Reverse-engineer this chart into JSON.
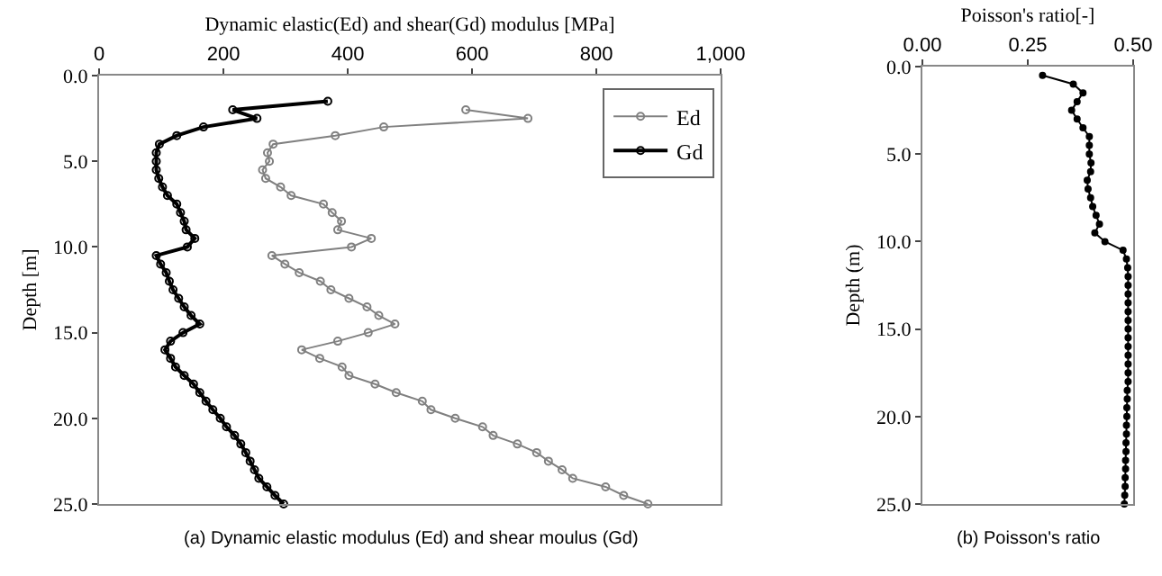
{
  "chart_data": [
    {
      "type": "line",
      "xlabel": "Dynamic elastic(Ed) and shear(Gd) modulus [MPa]",
      "ylabel": "Depth [m]",
      "annotations": [
        "(a) Dynamic elastic modulus (Ed) and shear moulus (Gd)"
      ],
      "xlim": [
        0,
        1000
      ],
      "xticks": [
        0,
        200,
        400,
        600,
        800,
        {
          "value": 1000,
          "label": "1,000"
        }
      ],
      "ylim": [
        25,
        0
      ],
      "yticks": [
        {
          "value": 0,
          "label": "0.0"
        },
        {
          "value": 5,
          "label": "5.0"
        },
        {
          "value": 10,
          "label": "10.0"
        },
        {
          "value": 15,
          "label": "15.0"
        },
        {
          "value": 20,
          "label": "20.0"
        },
        {
          "value": 25,
          "label": "25.0"
        }
      ],
      "grid": false,
      "legend": "top right",
      "marker": "circle",
      "line_style": "solid",
      "series": [
        {
          "name": "Ed",
          "color": "#808080",
          "x": [
            590,
            690,
            458,
            380,
            280,
            271,
            274,
            263,
            268,
            292,
            309,
            361,
            375,
            390,
            384,
            438,
            406,
            278,
            299,
            322,
            356,
            373,
            402,
            431,
            450,
            476,
            433,
            384,
            326,
            355,
            391,
            402,
            444,
            478,
            520,
            534,
            573,
            617,
            634,
            673,
            704,
            723,
            745,
            762,
            815,
            844,
            883
          ],
          "values": [
            2,
            2.5,
            3,
            3.5,
            4,
            4.5,
            5,
            5.5,
            6,
            6.5,
            7,
            7.5,
            8,
            8.5,
            9,
            9.5,
            10,
            10.5,
            11,
            11.5,
            12,
            12.5,
            13,
            13.5,
            14,
            14.5,
            15,
            15.5,
            16,
            16.5,
            17,
            17.5,
            18,
            18.5,
            19,
            19.5,
            20,
            20.5,
            21,
            21.5,
            22,
            22.5,
            23,
            23.5,
            24,
            24.5,
            25
          ]
        },
        {
          "name": "Gd",
          "color": "#000000",
          "x": [
            368,
            215,
            254,
            168,
            125,
            97,
            92,
            92,
            92,
            96,
            102,
            110,
            125,
            131,
            137,
            140,
            154,
            142,
            92,
            99,
            108,
            113,
            119,
            128,
            137,
            148,
            162,
            135,
            115,
            106,
            115,
            123,
            137,
            152,
            162,
            172,
            183,
            195,
            205,
            218,
            228,
            236,
            243,
            250,
            257,
            270,
            283,
            297
          ],
          "values": [
            1.5,
            2,
            2.5,
            3,
            3.5,
            4,
            4.5,
            5,
            5.5,
            6,
            6.5,
            7,
            7.5,
            8,
            8.5,
            9,
            9.5,
            10,
            10.5,
            11,
            11.5,
            12,
            12.5,
            13,
            13.5,
            14,
            14.5,
            15,
            15.5,
            16,
            16.5,
            17,
            17.5,
            18,
            18.5,
            19,
            19.5,
            20,
            20.5,
            21,
            21.5,
            22,
            22.5,
            23,
            23.5,
            24,
            24.5,
            25
          ]
        }
      ]
    },
    {
      "type": "line",
      "xlabel": "Poisson's ratio[-]",
      "ylabel": "Depth (m)",
      "annotations": [
        "(b) Poisson's ratio"
      ],
      "xlim": [
        0,
        0.5
      ],
      "xticks": [
        {
          "value": 0,
          "label": "0.00"
        },
        {
          "value": 0.25,
          "label": "0.25"
        },
        {
          "value": 0.5,
          "label": "0.50"
        }
      ],
      "ylim": [
        25,
        0
      ],
      "yticks": [
        {
          "value": 0,
          "label": "0.0"
        },
        {
          "value": 5,
          "label": "5.0"
        },
        {
          "value": 10,
          "label": "10.0"
        },
        {
          "value": 15,
          "label": "15.0"
        },
        {
          "value": 20,
          "label": "20.0"
        },
        {
          "value": 25,
          "label": "25.0"
        }
      ],
      "grid": false,
      "marker": "circle",
      "line_style": "solid",
      "series": [
        {
          "color": "#000000",
          "x": [
            0.285,
            0.358,
            0.381,
            0.367,
            0.354,
            0.367,
            0.381,
            0.396,
            0.396,
            0.396,
            0.4,
            0.399,
            0.391,
            0.393,
            0.399,
            0.404,
            0.412,
            0.42,
            0.409,
            0.433,
            0.476,
            0.484,
            0.487,
            0.488,
            0.488,
            0.488,
            0.488,
            0.488,
            0.488,
            0.488,
            0.488,
            0.488,
            0.488,
            0.488,
            0.488,
            0.488,
            0.486,
            0.486,
            0.485,
            0.485,
            0.484,
            0.484,
            0.483,
            0.483,
            0.482,
            0.482,
            0.481,
            0.481,
            0.48,
            0.479
          ],
          "values": [
            0.5,
            1,
            1.5,
            2,
            2.5,
            3,
            3.5,
            4,
            4.5,
            5,
            5.5,
            6,
            6.5,
            7,
            7.5,
            8,
            8.5,
            9,
            9.5,
            10,
            10.5,
            11,
            11.5,
            12,
            12.5,
            13,
            13.5,
            14,
            14.5,
            15,
            15.5,
            16,
            16.5,
            17,
            17.5,
            18,
            18.5,
            19,
            19.5,
            20,
            20.5,
            21,
            21.5,
            22,
            22.5,
            23,
            23.5,
            24,
            24.5,
            25
          ]
        }
      ]
    }
  ]
}
